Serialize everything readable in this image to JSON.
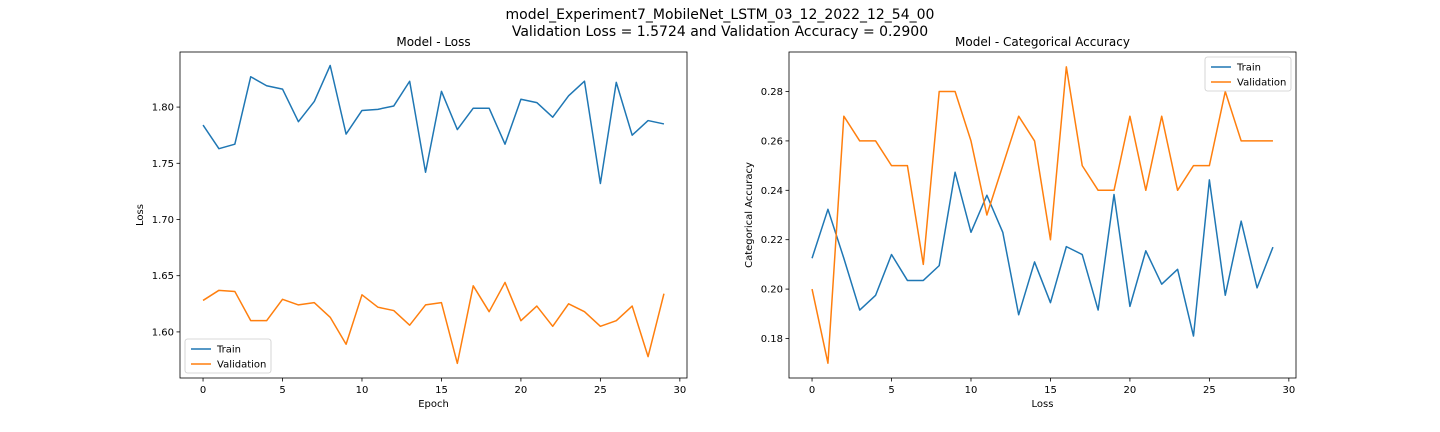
{
  "figure": {
    "title_line1": "model_Experiment7_MobileNet_LSTM_03_12_2022_12_54_00",
    "title_line2": "Validation Loss = 1.5724 and Validation Accuracy = 0.2900"
  },
  "colors": {
    "train": "#1f77b4",
    "validation": "#ff7f0e"
  },
  "chart_data": [
    {
      "type": "line",
      "title": "Model - Loss",
      "xlabel": "Epoch",
      "ylabel": "Loss",
      "xlim": [
        -1.45,
        30.45
      ],
      "ylim": [
        1.559,
        1.849
      ],
      "xticks": [
        0,
        5,
        10,
        15,
        20,
        25,
        30
      ],
      "yticks": [
        1.6,
        1.65,
        1.7,
        1.75,
        1.8
      ],
      "ytick_labels": [
        "1.60",
        "1.65",
        "1.70",
        "1.75",
        "1.80"
      ],
      "legend": "lower-left",
      "x": [
        0,
        1,
        2,
        3,
        4,
        5,
        6,
        7,
        8,
        9,
        10,
        11,
        12,
        13,
        14,
        15,
        16,
        17,
        18,
        19,
        20,
        21,
        22,
        23,
        24,
        25,
        26,
        27,
        28,
        29
      ],
      "series": [
        {
          "name": "Train",
          "color_key": "train",
          "values": [
            1.784,
            1.763,
            1.767,
            1.827,
            1.819,
            1.816,
            1.787,
            1.805,
            1.837,
            1.776,
            1.797,
            1.798,
            1.801,
            1.823,
            1.742,
            1.814,
            1.78,
            1.799,
            1.799,
            1.767,
            1.807,
            1.804,
            1.791,
            1.81,
            1.823,
            1.732,
            1.822,
            1.775,
            1.788,
            1.785
          ]
        },
        {
          "name": "Validation",
          "color_key": "validation",
          "values": [
            1.628,
            1.637,
            1.636,
            1.61,
            1.61,
            1.629,
            1.624,
            1.626,
            1.613,
            1.589,
            1.633,
            1.622,
            1.619,
            1.606,
            1.624,
            1.626,
            1.572,
            1.641,
            1.618,
            1.644,
            1.61,
            1.623,
            1.605,
            1.625,
            1.618,
            1.605,
            1.61,
            1.623,
            1.578,
            1.634
          ]
        }
      ]
    },
    {
      "type": "line",
      "title": "Model - Categorical Accuracy",
      "xlabel": "Loss",
      "ylabel": "Categorical Accuracy",
      "xlim": [
        -1.45,
        30.45
      ],
      "ylim": [
        0.164,
        0.296
      ],
      "xticks": [
        0,
        5,
        10,
        15,
        20,
        25,
        30
      ],
      "yticks": [
        0.18,
        0.2,
        0.22,
        0.24,
        0.26,
        0.28
      ],
      "ytick_labels": [
        "0.18",
        "0.20",
        "0.22",
        "0.24",
        "0.26",
        "0.28"
      ],
      "legend": "top-right",
      "x": [
        0,
        1,
        2,
        3,
        4,
        5,
        6,
        7,
        8,
        9,
        10,
        11,
        12,
        13,
        14,
        15,
        16,
        17,
        18,
        19,
        20,
        21,
        22,
        23,
        24,
        25,
        26,
        27,
        28,
        29
      ],
      "series": [
        {
          "name": "Train",
          "color_key": "train",
          "values": [
            0.2125,
            0.2323,
            0.2125,
            0.1915,
            0.1975,
            0.214,
            0.2035,
            0.2035,
            0.2095,
            0.2473,
            0.223,
            0.238,
            0.223,
            0.1896,
            0.211,
            0.1945,
            0.2172,
            0.214,
            0.1915,
            0.2383,
            0.193,
            0.2155,
            0.202,
            0.208,
            0.181,
            0.2442,
            0.1975,
            0.2275,
            0.2005,
            0.217
          ]
        },
        {
          "name": "Validation",
          "color_key": "validation",
          "values": [
            0.2,
            0.17,
            0.27,
            0.26,
            0.26,
            0.25,
            0.25,
            0.21,
            0.28,
            0.28,
            0.26,
            0.23,
            0.25,
            0.27,
            0.26,
            0.22,
            0.29,
            0.25,
            0.24,
            0.24,
            0.27,
            0.24,
            0.27,
            0.24,
            0.25,
            0.25,
            0.28,
            0.26,
            0.26,
            0.26
          ]
        }
      ]
    }
  ]
}
